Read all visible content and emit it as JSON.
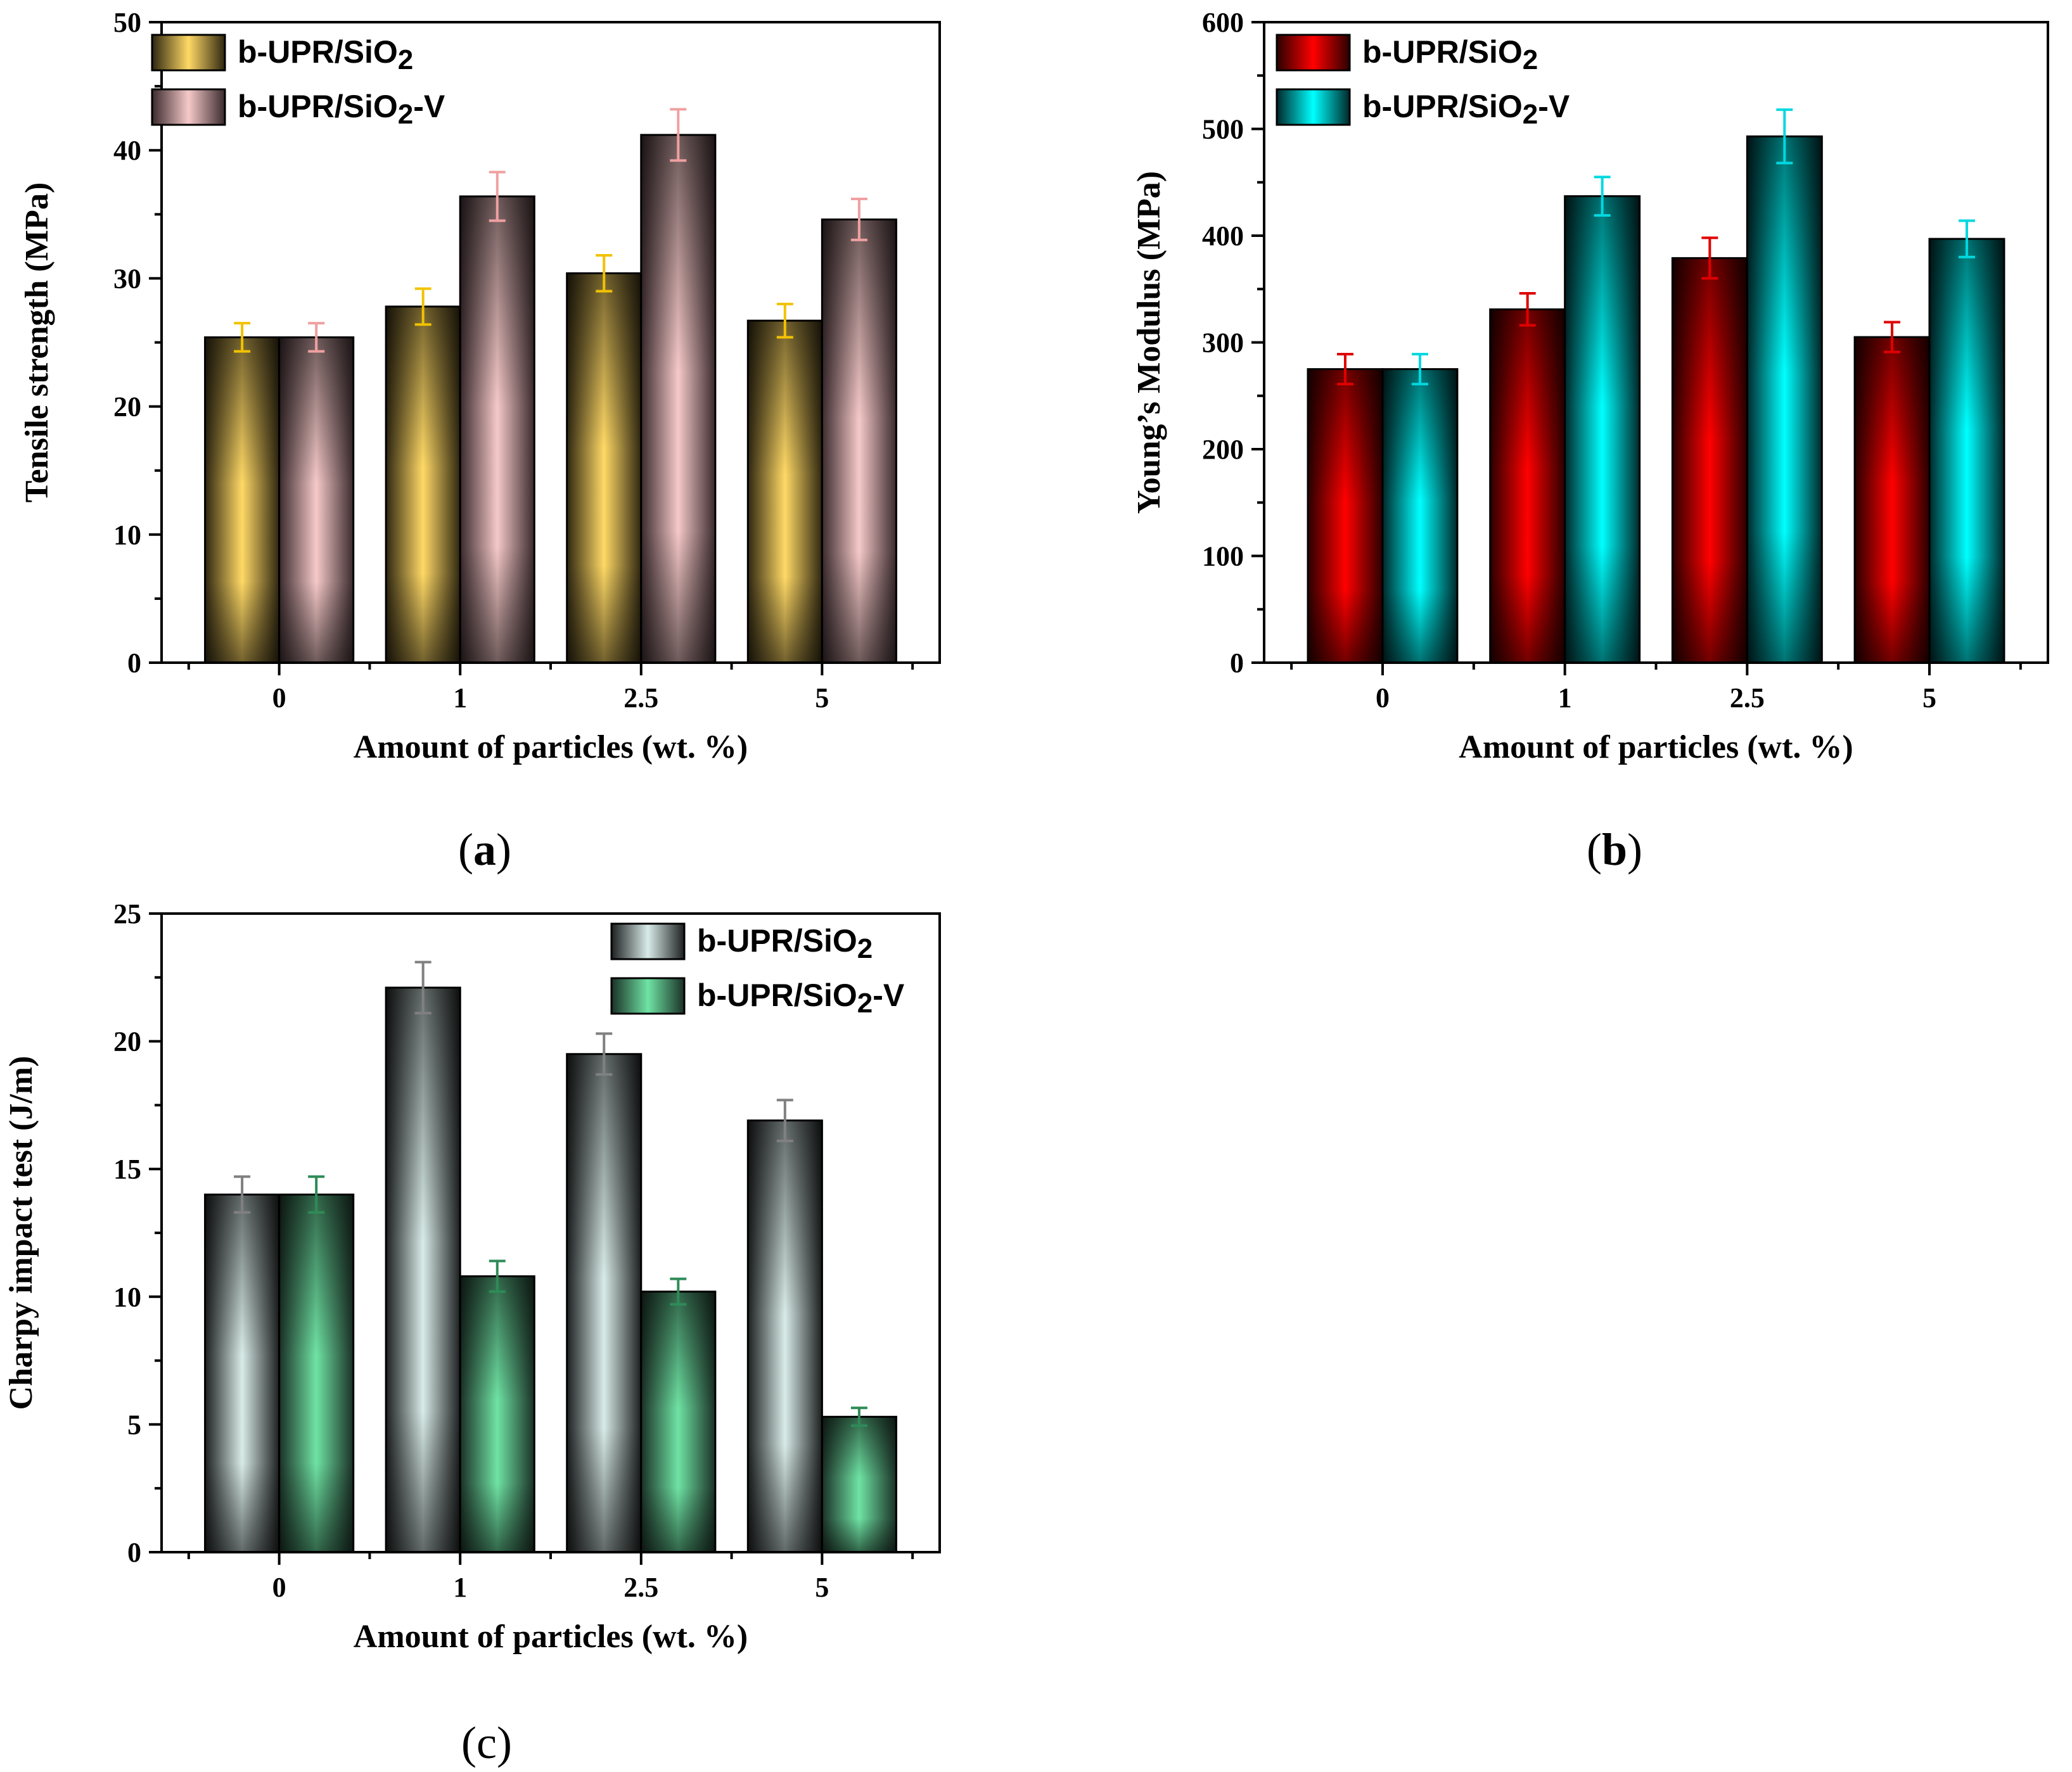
{
  "charts": [
    {
      "panel": "(a)",
      "panel_letter": "a",
      "type": "bar",
      "categories": [
        "0",
        "1",
        "2.5",
        "5"
      ],
      "xlabel": "Amount of  particles (wt. %)",
      "ylabel": "Tensile strength (MPa)",
      "ylim": [
        0,
        50
      ],
      "yticks": [
        0,
        10,
        20,
        30,
        40,
        50
      ],
      "legend_position": "top-left",
      "series": [
        {
          "name_main": "b-UPR/SiO",
          "name_sub": "2",
          "name_tail": "",
          "values": [
            25.4,
            27.8,
            30.4,
            26.7
          ],
          "errors": [
            1.1,
            1.4,
            1.4,
            1.3
          ],
          "color": "#ffd966",
          "dark": "#2e2610",
          "err_color": "#f2c200"
        },
        {
          "name_main": "b-UPR/SiO",
          "name_sub": "2",
          "name_tail": "-V",
          "values": [
            25.4,
            36.4,
            41.2,
            34.6
          ],
          "errors": [
            1.1,
            1.9,
            2.0,
            1.6
          ],
          "color": "#f6c9c9",
          "dark": "#3a2a2d",
          "err_color": "#f0a0a0"
        }
      ]
    },
    {
      "panel": "(b)",
      "panel_letter": "b",
      "type": "bar",
      "categories": [
        "0",
        "1",
        "2.5",
        "5"
      ],
      "xlabel": "Amount of  particles (wt. %)",
      "ylabel": "Young’s Modulus (MPa)",
      "ylim": [
        0,
        600
      ],
      "yticks": [
        0,
        100,
        200,
        300,
        400,
        500,
        600
      ],
      "legend_position": "top-left",
      "series": [
        {
          "name_main": "b-UPR/SiO",
          "name_sub": "2",
          "name_tail": "",
          "values": [
            275,
            331,
            379,
            305
          ],
          "errors": [
            14,
            15,
            19,
            14
          ],
          "color": "#ff0000",
          "dark": "#2a0000",
          "err_color": "#e00000"
        },
        {
          "name_main": "b-UPR/SiO",
          "name_sub": "2",
          "name_tail": "-V",
          "values": [
            275,
            437,
            493,
            397
          ],
          "errors": [
            14,
            18,
            25,
            17
          ],
          "color": "#00ffff",
          "dark": "#00282a",
          "err_color": "#00d8e0"
        }
      ]
    },
    {
      "panel": "(c)",
      "panel_letter": "c",
      "type": "bar",
      "categories": [
        "0",
        "1",
        "2.5",
        "5"
      ],
      "xlabel": "Amount of  particles (wt. %)",
      "ylabel": "Charpy impact test (J/m)",
      "ylim": [
        0,
        25
      ],
      "yticks": [
        0,
        5,
        10,
        15,
        20,
        25
      ],
      "legend_position": "top-right",
      "series": [
        {
          "name_main": "b-UPR/SiO",
          "name_sub": "2",
          "name_tail": "",
          "values": [
            14.0,
            22.1,
            19.5,
            16.9
          ],
          "errors": [
            0.7,
            1.0,
            0.8,
            0.8
          ],
          "color": "#d8ebe8",
          "dark": "#1c1f1f",
          "err_color": "#808080"
        },
        {
          "name_main": "b-UPR/SiO",
          "name_sub": "2",
          "name_tail": "-V",
          "values": [
            14.0,
            10.8,
            10.2,
            5.3
          ],
          "errors": [
            0.7,
            0.6,
            0.5,
            0.35
          ],
          "color": "#6fe3a4",
          "dark": "#1a3026",
          "err_color": "#2e8b57"
        }
      ]
    }
  ]
}
